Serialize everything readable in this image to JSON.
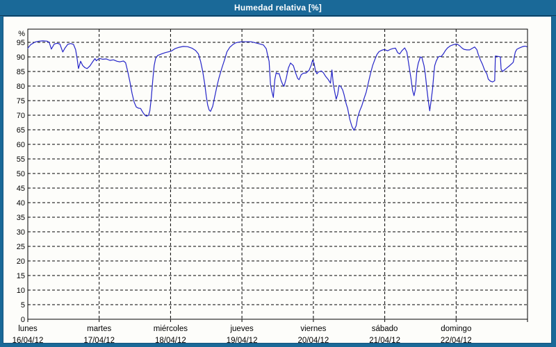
{
  "header": {
    "title": "Humedad relativa [%]"
  },
  "colors": {
    "frame": "#1a6998",
    "title_text": "#ffffff",
    "panel": "#fdfdfa",
    "grid": "#000000",
    "line": "#2424c8",
    "label_text": "#000000"
  },
  "chart_data": {
    "type": "line",
    "title": "Humedad relativa [%]",
    "ylabel_unit": "%",
    "ylim": [
      0,
      99
    ],
    "y_ticks": [
      0,
      5,
      10,
      15,
      20,
      25,
      30,
      35,
      40,
      45,
      50,
      55,
      60,
      65,
      70,
      75,
      80,
      85,
      90,
      95
    ],
    "grid": "dashed",
    "legend": "none",
    "x_range_days": [
      0,
      7
    ],
    "x_days": [
      {
        "name": "lunes",
        "date": "16/04/12"
      },
      {
        "name": "martes",
        "date": "17/04/12"
      },
      {
        "name": "miércoles",
        "date": "18/04/12"
      },
      {
        "name": "jueves",
        "date": "19/04/12"
      },
      {
        "name": "viernes",
        "date": "20/04/12"
      },
      {
        "name": "sábado",
        "date": "21/04/12"
      },
      {
        "name": "domingo",
        "date": "22/04/12"
      }
    ],
    "series": [
      {
        "name": "Humedad relativa [%]",
        "color": "#2424c8",
        "points": [
          [
            0.0,
            93.0
          ],
          [
            0.04,
            94.2
          ],
          [
            0.1,
            95.1
          ],
          [
            0.16,
            95.4
          ],
          [
            0.21,
            95.5
          ],
          [
            0.27,
            95.4
          ],
          [
            0.3,
            95.0
          ],
          [
            0.33,
            92.7
          ],
          [
            0.37,
            94.4
          ],
          [
            0.41,
            94.7
          ],
          [
            0.45,
            94.4
          ],
          [
            0.49,
            91.7
          ],
          [
            0.52,
            93.0
          ],
          [
            0.56,
            94.3
          ],
          [
            0.6,
            94.6
          ],
          [
            0.64,
            94.3
          ],
          [
            0.67,
            92.5
          ],
          [
            0.69,
            89.5
          ],
          [
            0.71,
            86.0
          ],
          [
            0.74,
            88.5
          ],
          [
            0.77,
            87.0
          ],
          [
            0.8,
            86.3
          ],
          [
            0.83,
            86.0
          ],
          [
            0.87,
            86.9
          ],
          [
            0.9,
            88.0
          ],
          [
            0.94,
            89.4
          ],
          [
            0.96,
            88.7
          ],
          [
            1.0,
            89.5
          ],
          [
            1.05,
            89.2
          ],
          [
            1.1,
            89.3
          ],
          [
            1.15,
            88.8
          ],
          [
            1.2,
            89.0
          ],
          [
            1.25,
            88.5
          ],
          [
            1.29,
            88.3
          ],
          [
            1.34,
            88.6
          ],
          [
            1.37,
            88.0
          ],
          [
            1.4,
            85.0
          ],
          [
            1.43,
            81.5
          ],
          [
            1.46,
            77.5
          ],
          [
            1.49,
            74.5
          ],
          [
            1.52,
            72.8
          ],
          [
            1.55,
            72.4
          ],
          [
            1.58,
            72.3
          ],
          [
            1.61,
            71.0
          ],
          [
            1.64,
            70.0
          ],
          [
            1.66,
            69.7
          ],
          [
            1.69,
            69.9
          ],
          [
            1.71,
            71.5
          ],
          [
            1.73,
            76.0
          ],
          [
            1.75,
            82.0
          ],
          [
            1.77,
            87.0
          ],
          [
            1.79,
            89.5
          ],
          [
            1.82,
            90.5
          ],
          [
            1.87,
            91.0
          ],
          [
            1.93,
            91.5
          ],
          [
            1.98,
            91.8
          ],
          [
            2.01,
            92.0
          ],
          [
            2.06,
            92.8
          ],
          [
            2.12,
            93.3
          ],
          [
            2.18,
            93.6
          ],
          [
            2.24,
            93.5
          ],
          [
            2.3,
            93.0
          ],
          [
            2.35,
            92.2
          ],
          [
            2.39,
            91.0
          ],
          [
            2.42,
            88.5
          ],
          [
            2.45,
            85.0
          ],
          [
            2.48,
            80.5
          ],
          [
            2.5,
            76.5
          ],
          [
            2.52,
            73.5
          ],
          [
            2.54,
            71.8
          ],
          [
            2.56,
            71.3
          ],
          [
            2.59,
            73.0
          ],
          [
            2.62,
            76.5
          ],
          [
            2.65,
            80.0
          ],
          [
            2.68,
            83.0
          ],
          [
            2.72,
            86.3
          ],
          [
            2.76,
            89.3
          ],
          [
            2.79,
            91.8
          ],
          [
            2.83,
            93.3
          ],
          [
            2.87,
            94.2
          ],
          [
            2.91,
            94.8
          ],
          [
            2.96,
            95.1
          ],
          [
            3.01,
            95.2
          ],
          [
            3.07,
            95.2
          ],
          [
            3.13,
            95.2
          ],
          [
            3.18,
            94.9
          ],
          [
            3.24,
            94.5
          ],
          [
            3.3,
            94.1
          ],
          [
            3.34,
            92.8
          ],
          [
            3.36,
            90.6
          ],
          [
            3.38,
            88.5
          ],
          [
            3.4,
            80.6
          ],
          [
            3.42,
            78.0
          ],
          [
            3.44,
            76.1
          ],
          [
            3.46,
            82.2
          ],
          [
            3.48,
            84.6
          ],
          [
            3.5,
            84.2
          ],
          [
            3.52,
            84.3
          ],
          [
            3.55,
            81.8
          ],
          [
            3.57,
            80.6
          ],
          [
            3.59,
            79.9
          ],
          [
            3.62,
            82.6
          ],
          [
            3.65,
            86.2
          ],
          [
            3.68,
            87.9
          ],
          [
            3.72,
            87.0
          ],
          [
            3.75,
            84.6
          ],
          [
            3.78,
            82.6
          ],
          [
            3.8,
            82.2
          ],
          [
            3.83,
            83.9
          ],
          [
            3.86,
            84.4
          ],
          [
            3.9,
            84.5
          ],
          [
            3.94,
            85.4
          ],
          [
            3.97,
            87.2
          ],
          [
            3.99,
            88.9
          ],
          [
            4.01,
            87.8
          ],
          [
            4.03,
            85.2
          ],
          [
            4.05,
            84.2
          ],
          [
            4.07,
            84.8
          ],
          [
            4.09,
            85.0
          ],
          [
            4.11,
            85.2
          ],
          [
            4.14,
            84.6
          ],
          [
            4.17,
            83.4
          ],
          [
            4.21,
            82.2
          ],
          [
            4.24,
            81.0
          ],
          [
            4.26,
            85.5
          ],
          [
            4.28,
            80.6
          ],
          [
            4.3,
            77.9
          ],
          [
            4.32,
            75.5
          ],
          [
            4.34,
            77.1
          ],
          [
            4.36,
            80.2
          ],
          [
            4.38,
            80.0
          ],
          [
            4.41,
            78.7
          ],
          [
            4.43,
            77.1
          ],
          [
            4.46,
            73.9
          ],
          [
            4.48,
            72.3
          ],
          [
            4.51,
            68.7
          ],
          [
            4.54,
            66.2
          ],
          [
            4.57,
            64.8
          ],
          [
            4.6,
            66.4
          ],
          [
            4.62,
            69.2
          ],
          [
            4.65,
            71.5
          ],
          [
            4.68,
            73.3
          ],
          [
            4.71,
            75.7
          ],
          [
            4.74,
            77.9
          ],
          [
            4.77,
            81.0
          ],
          [
            4.8,
            84.2
          ],
          [
            4.83,
            87.0
          ],
          [
            4.86,
            89.0
          ],
          [
            4.89,
            90.8
          ],
          [
            4.92,
            91.8
          ],
          [
            4.96,
            92.3
          ],
          [
            4.99,
            92.5
          ],
          [
            5.01,
            92.4
          ],
          [
            5.04,
            92.1
          ],
          [
            5.08,
            92.6
          ],
          [
            5.12,
            92.9
          ],
          [
            5.15,
            93.0
          ],
          [
            5.18,
            91.5
          ],
          [
            5.21,
            91.0
          ],
          [
            5.24,
            92.1
          ],
          [
            5.28,
            93.1
          ],
          [
            5.31,
            91.7
          ],
          [
            5.33,
            88.5
          ],
          [
            5.35,
            85.4
          ],
          [
            5.37,
            82.2
          ],
          [
            5.39,
            78.5
          ],
          [
            5.41,
            76.7
          ],
          [
            5.43,
            78.9
          ],
          [
            5.45,
            85.4
          ],
          [
            5.47,
            87.8
          ],
          [
            5.5,
            90.0
          ],
          [
            5.52,
            89.8
          ],
          [
            5.55,
            87.0
          ],
          [
            5.57,
            83.8
          ],
          [
            5.59,
            79.0
          ],
          [
            5.61,
            75.0
          ],
          [
            5.63,
            71.5
          ],
          [
            5.65,
            75.0
          ],
          [
            5.67,
            79.0
          ],
          [
            5.69,
            84.6
          ],
          [
            5.7,
            87.0
          ],
          [
            5.72,
            88.5
          ],
          [
            5.75,
            90.0
          ],
          [
            5.77,
            90.2
          ],
          [
            5.79,
            90.1
          ],
          [
            5.82,
            91.0
          ],
          [
            5.85,
            92.2
          ],
          [
            5.88,
            93.1
          ],
          [
            5.92,
            93.8
          ],
          [
            5.96,
            94.2
          ],
          [
            6.0,
            94.4
          ],
          [
            6.02,
            94.3
          ],
          [
            6.05,
            93.8
          ],
          [
            6.08,
            93.1
          ],
          [
            6.11,
            92.6
          ],
          [
            6.15,
            92.4
          ],
          [
            6.19,
            92.4
          ],
          [
            6.23,
            93.0
          ],
          [
            6.26,
            93.4
          ],
          [
            6.29,
            92.5
          ],
          [
            6.31,
            90.9
          ],
          [
            6.34,
            89.0
          ],
          [
            6.37,
            87.4
          ],
          [
            6.4,
            85.4
          ],
          [
            6.43,
            84.2
          ],
          [
            6.45,
            82.4
          ],
          [
            6.48,
            81.7
          ],
          [
            6.51,
            81.4
          ],
          [
            6.54,
            81.8
          ],
          [
            6.55,
            90.3
          ],
          [
            6.58,
            90.2
          ],
          [
            6.62,
            90.0
          ],
          [
            6.63,
            85.8
          ],
          [
            6.65,
            85.0
          ],
          [
            6.69,
            85.8
          ],
          [
            6.72,
            86.4
          ],
          [
            6.75,
            87.0
          ],
          [
            6.79,
            87.9
          ],
          [
            6.8,
            88.2
          ],
          [
            6.82,
            90.6
          ],
          [
            6.83,
            91.7
          ],
          [
            6.85,
            92.6
          ],
          [
            6.88,
            93.0
          ],
          [
            6.91,
            93.3
          ],
          [
            6.94,
            93.6
          ],
          [
            6.97,
            93.7
          ],
          [
            6.99,
            93.5
          ]
        ]
      }
    ]
  }
}
